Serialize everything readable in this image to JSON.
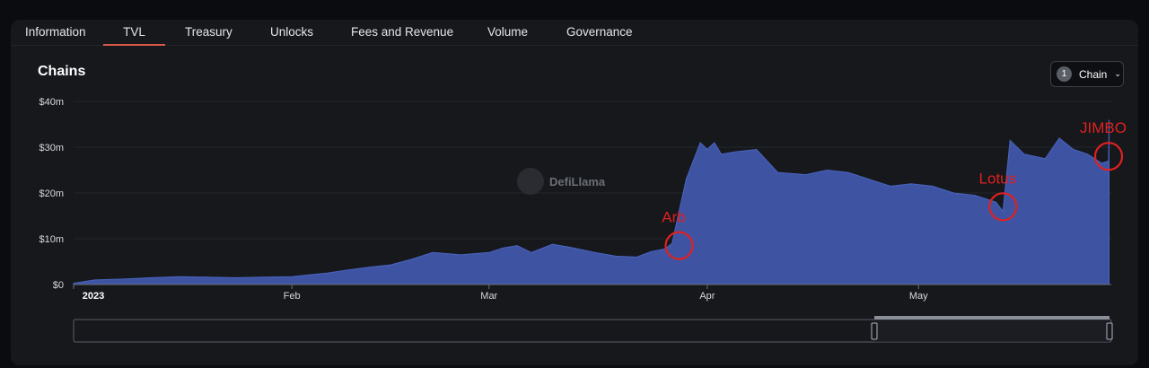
{
  "tabs": [
    "Information",
    "TVL",
    "Treasury",
    "Unlocks",
    "Fees and Revenue",
    "Volume",
    "Governance"
  ],
  "active_tab": "TVL",
  "panel": {
    "title": "Chains",
    "chain_count": "1",
    "chain_button_label": "Chain"
  },
  "watermark": "DefiLlama",
  "colors": {
    "area": "#3e54a3",
    "area_stroke": "#4a63bd",
    "annotation": "#e02020",
    "active_tab": "#d9584a"
  },
  "chart_data": {
    "type": "area",
    "title": "Chains",
    "xlabel": "",
    "ylabel": "",
    "y_ticks": [
      "$0",
      "$10m",
      "$20m",
      "$30m",
      "$40m"
    ],
    "ylim": [
      0,
      40
    ],
    "x_ticks": [
      "2023",
      "Feb",
      "Mar",
      "Apr",
      "May"
    ],
    "x_start": "2023-01-01",
    "x_end": "2023-05-28",
    "grid": true,
    "legend": "none",
    "series": [
      {
        "points": [
          [
            "2023-01-01",
            0.3
          ],
          [
            "2023-01-04",
            1.0
          ],
          [
            "2023-01-08",
            1.2
          ],
          [
            "2023-01-12",
            1.5
          ],
          [
            "2023-01-16",
            1.7
          ],
          [
            "2023-01-20",
            1.6
          ],
          [
            "2023-01-24",
            1.5
          ],
          [
            "2023-01-28",
            1.6
          ],
          [
            "2023-02-01",
            1.7
          ],
          [
            "2023-02-04",
            2.2
          ],
          [
            "2023-02-06",
            2.5
          ],
          [
            "2023-02-09",
            3.2
          ],
          [
            "2023-02-12",
            3.8
          ],
          [
            "2023-02-15",
            4.3
          ],
          [
            "2023-02-18",
            5.5
          ],
          [
            "2023-02-21",
            7.0
          ],
          [
            "2023-02-25",
            6.5
          ],
          [
            "2023-03-01",
            7.0
          ],
          [
            "2023-03-03",
            8.0
          ],
          [
            "2023-03-05",
            8.5
          ],
          [
            "2023-03-07",
            7.0
          ],
          [
            "2023-03-10",
            8.8
          ],
          [
            "2023-03-13",
            8.0
          ],
          [
            "2023-03-16",
            7.0
          ],
          [
            "2023-03-19",
            6.2
          ],
          [
            "2023-03-22",
            6.0
          ],
          [
            "2023-03-24",
            7.2
          ],
          [
            "2023-03-26",
            7.8
          ],
          [
            "2023-03-27",
            9.0
          ],
          [
            "2023-03-28",
            16.0
          ],
          [
            "2023-03-29",
            23.0
          ],
          [
            "2023-03-30",
            27.0
          ],
          [
            "2023-03-31",
            31.0
          ],
          [
            "2023-04-01",
            29.5
          ],
          [
            "2023-04-02",
            31.0
          ],
          [
            "2023-04-03",
            28.5
          ],
          [
            "2023-04-05",
            29.0
          ],
          [
            "2023-04-08",
            29.5
          ],
          [
            "2023-04-11",
            24.5
          ],
          [
            "2023-04-15",
            24.0
          ],
          [
            "2023-04-18",
            25.0
          ],
          [
            "2023-04-21",
            24.5
          ],
          [
            "2023-04-24",
            23.0
          ],
          [
            "2023-04-27",
            21.5
          ],
          [
            "2023-04-30",
            22.0
          ],
          [
            "2023-05-03",
            21.5
          ],
          [
            "2023-05-06",
            20.0
          ],
          [
            "2023-05-09",
            19.5
          ],
          [
            "2023-05-12",
            18.0
          ],
          [
            "2023-05-13",
            16.0
          ],
          [
            "2023-05-14",
            31.5
          ],
          [
            "2023-05-16",
            28.5
          ],
          [
            "2023-05-19",
            27.5
          ],
          [
            "2023-05-21",
            32.0
          ],
          [
            "2023-05-23",
            29.5
          ],
          [
            "2023-05-25",
            28.5
          ],
          [
            "2023-05-27",
            26.5
          ],
          [
            "2023-05-28",
            27.0
          ],
          [
            "2023-05-28",
            36.0
          ]
        ]
      }
    ],
    "annotations": [
      {
        "label": "Arb",
        "date": "2023-03-28",
        "value": 8.5
      },
      {
        "label": "Lotus",
        "date": "2023-05-13",
        "value": 17.0
      },
      {
        "label": "JIMBO",
        "date": "2023-05-28",
        "value": 28.0
      }
    ]
  }
}
